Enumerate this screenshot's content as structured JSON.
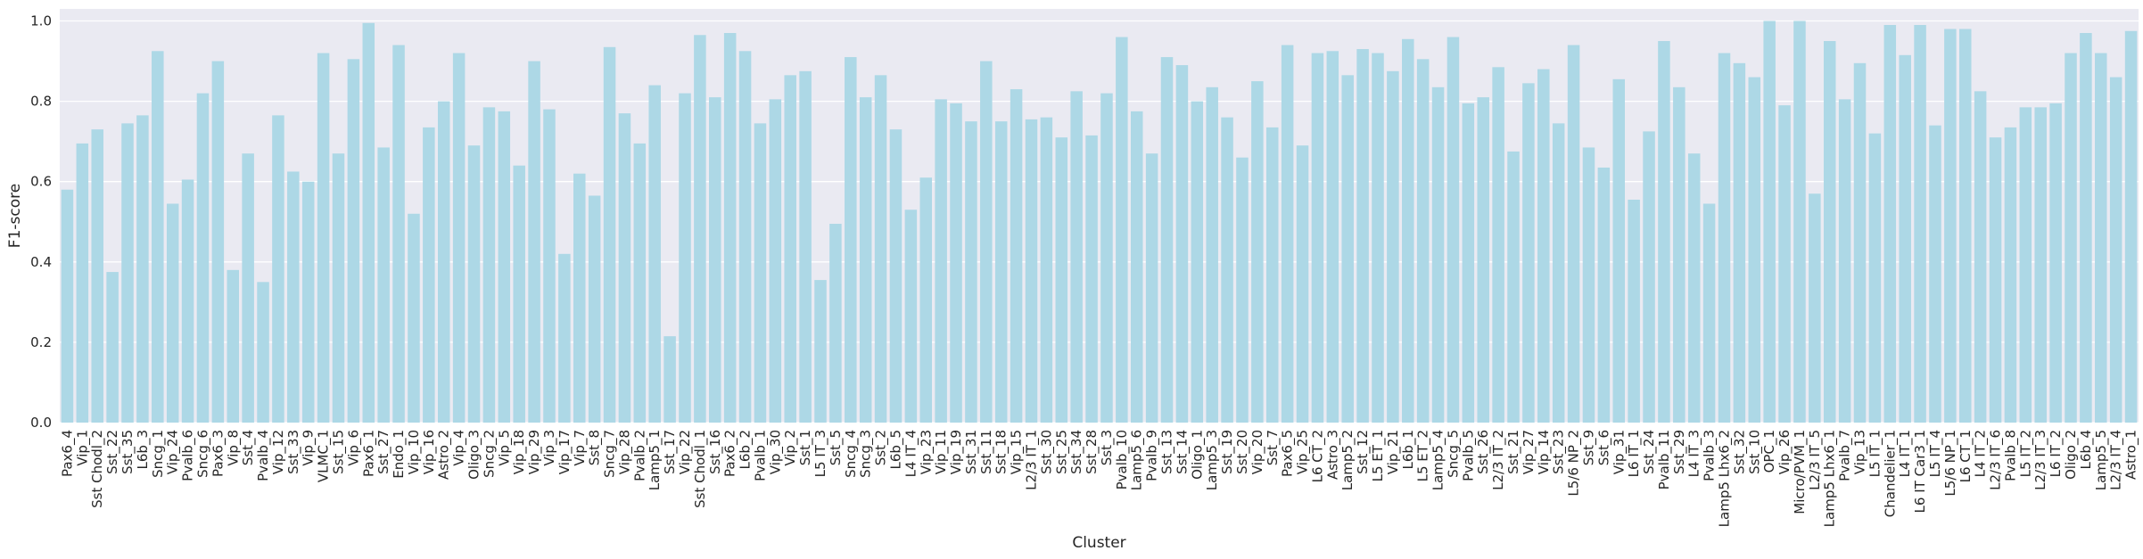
{
  "chart_data": {
    "type": "bar",
    "xlabel": "Cluster",
    "ylabel": "F1-score",
    "ylim": [
      0,
      1.03
    ],
    "yticks": [
      0.0,
      0.2,
      0.4,
      0.6,
      0.8,
      1.0
    ],
    "ytick_labels": [
      "0.0",
      "0.2",
      "0.4",
      "0.6",
      "0.8",
      "1.0"
    ],
    "grid": true,
    "bar_color": "#add8e6",
    "background_color": "#eaeaf2",
    "categories": [
      "Pax6_4",
      "Vip_1",
      "Sst Chodl_2",
      "Sst_22",
      "Sst_35",
      "L6b_3",
      "Sncg_1",
      "Vip_24",
      "Pvalb_6",
      "Sncg_6",
      "Pax6_3",
      "Vip_8",
      "Sst_4",
      "Pvalb_4",
      "Vip_12",
      "Sst_33",
      "Vip_9",
      "VLMC_1",
      "Sst_15",
      "Vip_6",
      "Pax6_1",
      "Sst_27",
      "Endo_1",
      "Vip_10",
      "Vip_16",
      "Astro_2",
      "Vip_4",
      "Oligo_3",
      "Sncg_2",
      "Vip_5",
      "Vip_18",
      "Vip_29",
      "Vip_3",
      "Vip_17",
      "Vip_7",
      "Sst_8",
      "Sncg_7",
      "Vip_28",
      "Pvalb_2",
      "Lamp5_1",
      "Sst_17",
      "Vip_22",
      "Sst Chodl_1",
      "Sst_16",
      "Pax6_2",
      "L6b_2",
      "Pvalb_1",
      "Vip_30",
      "Vip_2",
      "Sst_1",
      "L5 IT_3",
      "Sst_5",
      "Sncg_4",
      "Sncg_3",
      "Sst_2",
      "L6b_5",
      "L4 IT_4",
      "Vip_23",
      "Vip_11",
      "Vip_19",
      "Sst_31",
      "Sst_11",
      "Sst_18",
      "Vip_15",
      "L2/3 IT_1",
      "Sst_30",
      "Sst_25",
      "Sst_34",
      "Sst_28",
      "Sst_3",
      "Pvalb_10",
      "Lamp5_6",
      "Pvalb_9",
      "Sst_13",
      "Sst_14",
      "Oligo_1",
      "Lamp5_3",
      "Sst_19",
      "Sst_20",
      "Vip_20",
      "Sst_7",
      "Pax6_5",
      "Vip_25",
      "L6 CT_2",
      "Astro_3",
      "Lamp5_2",
      "Sst_12",
      "L5 ET_1",
      "Vip_21",
      "L6b_1",
      "L5 ET_2",
      "Lamp5_4",
      "Sncg_5",
      "Pvalb_5",
      "Sst_26",
      "L2/3 IT_2",
      "Sst_21",
      "Vip_27",
      "Vip_14",
      "Sst_23",
      "L5/6 NP_2",
      "Sst_9",
      "Sst_6",
      "Vip_31",
      "L6 IT_1",
      "Sst_24",
      "Pvalb_11",
      "Sst_29",
      "L4 IT_3",
      "Pvalb_3",
      "Lamp5 Lhx6_2",
      "Sst_32",
      "Sst_10",
      "OPC_1",
      "Vip_26",
      "Micro/PVM_1",
      "L2/3 IT_5",
      "Lamp5 Lhx6_1",
      "Pvalb_7",
      "Vip_13",
      "L5 IT_1",
      "Chandelier_1",
      "L4 IT_1",
      "L6 IT Car3_1",
      "L5 IT_4",
      "L5/6 NP_1",
      "L6 CT_1",
      "L4 IT_2",
      "L2/3 IT_6",
      "Pvalb_8",
      "L5 IT_2",
      "L2/3 IT_3",
      "L6 IT_2",
      "Oligo_2",
      "L6b_4",
      "Lamp5_5",
      "L2/3 IT_4",
      "Astro_1"
    ],
    "values": [
      0.58,
      0.695,
      0.73,
      0.375,
      0.745,
      0.765,
      0.925,
      0.545,
      0.605,
      0.82,
      0.9,
      0.38,
      0.67,
      0.35,
      0.765,
      0.625,
      0.6,
      0.92,
      0.67,
      0.905,
      0.995,
      0.685,
      0.94,
      0.52,
      0.735,
      0.8,
      0.92,
      0.69,
      0.785,
      0.775,
      0.64,
      0.9,
      0.78,
      0.42,
      0.62,
      0.565,
      0.935,
      0.77,
      0.695,
      0.84,
      0.215,
      0.82,
      0.965,
      0.81,
      0.97,
      0.925,
      0.745,
      0.805,
      0.865,
      0.875,
      0.355,
      0.495,
      0.91,
      0.81,
      0.865,
      0.73,
      0.53,
      0.61,
      0.805,
      0.795,
      0.75,
      0.9,
      0.75,
      0.83,
      0.755,
      0.76,
      0.71,
      0.825,
      0.715,
      0.82,
      0.96,
      0.775,
      0.67,
      0.91,
      0.89,
      0.8,
      0.835,
      0.76,
      0.66,
      0.85,
      0.735,
      0.94,
      0.69,
      0.92,
      0.925,
      0.865,
      0.93,
      0.92,
      0.875,
      0.955,
      0.905,
      0.835,
      0.96,
      0.795,
      0.81,
      0.885,
      0.675,
      0.845,
      0.88,
      0.745,
      0.94,
      0.685,
      0.635,
      0.855,
      0.555,
      0.725,
      0.95,
      0.835,
      0.67,
      0.545,
      0.92,
      0.895,
      0.86,
      1.0,
      0.79,
      1.0,
      0.57,
      0.95,
      0.805,
      0.895,
      0.72,
      0.99,
      0.915,
      0.99,
      0.74,
      0.98,
      0.98,
      0.825,
      0.71,
      0.735,
      0.785,
      0.785,
      0.795,
      0.92,
      0.97,
      0.92,
      0.86,
      0.975
    ]
  }
}
